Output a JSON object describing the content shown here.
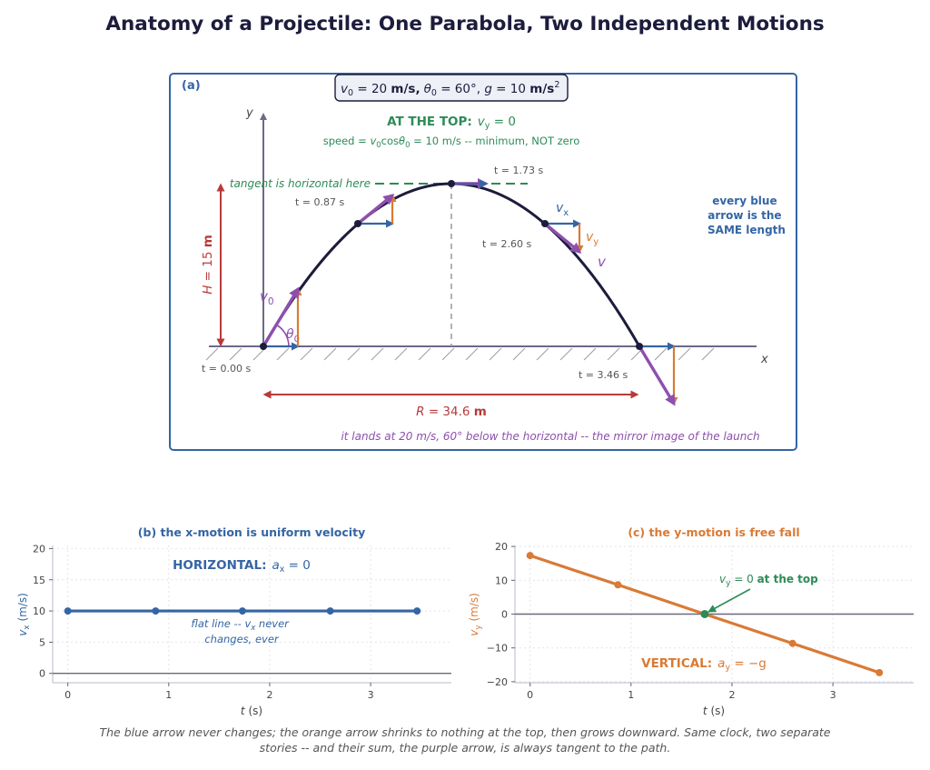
{
  "title": "Anatomy of a Projectile: One Parabola, Two Independent Motions",
  "panel_a": {
    "tag": "(a)",
    "params": "v0 = 20 m/s, θ0 = 60°, g = 10 m/s²",
    "params_v0": "v",
    "params_v0_sub": "0",
    "params_v0_rest": " = 20 ",
    "params_v0_unit": "m/s,",
    "params_theta": "θ",
    "params_theta_sub": "0",
    "params_theta_rest": " = 60°,  ",
    "params_g": "g",
    "params_g_rest": " = 10 ",
    "params_g_unit": "m/s",
    "params_g_exp": "2",
    "top_heading": "AT THE TOP:",
    "top_heading_vy": "v",
    "top_heading_vy_sub": "y",
    "top_heading_vy_rest": " = 0",
    "speed_prefix": "speed  = ",
    "speed_expr_v": "v",
    "speed_expr_sub": "0",
    "speed_expr_cos": "cos",
    "speed_expr_theta": "θ",
    "speed_expr_theta_sub": "0",
    "speed_suffix": " = 10 m/s -- minimum, NOT zero",
    "tangent_note": "tangent is horizontal here",
    "axis_y": "y",
    "axis_x": "x",
    "times": [
      "t = 0.00 s",
      "t = 0.87 s",
      "t = 1.73 s",
      "t = 2.60 s",
      "t = 3.46 s"
    ],
    "label_v0": "v",
    "label_v0_sub": "0",
    "label_theta": "θ",
    "label_theta_sub": "0",
    "label_vx": "v",
    "label_vx_sub": "x",
    "label_vy": "v",
    "label_vy_sub": "y",
    "label_v": "v",
    "height_label": "H = 15 m",
    "height_H": "H",
    "height_rest": " = 15 ",
    "height_unit": "m",
    "range_R": "R",
    "range_rest": " = 34.6 ",
    "range_unit": "m",
    "blue_note": [
      "every blue",
      "arrow is the",
      "SAME length"
    ],
    "landing_note": "it lands at 20 m/s, 60° below the horizontal -- the mirror image of the launch"
  },
  "panel_b": {
    "title": "(b)  the x-motion is uniform velocity",
    "heading": "HORIZONTAL:",
    "heading_a": "a",
    "heading_a_sub": "x",
    "heading_rest": " = 0",
    "note_line1_pre": "flat line -- ",
    "note_line1_v": "v",
    "note_line1_sub": "x",
    "note_line1_post": " never",
    "note_line2": "changes, ever",
    "ylabel_v": "v",
    "ylabel_sub": "x",
    "ylabel_unit": " (m/s)",
    "xlabel_t": "t",
    "xlabel_unit": " (s)"
  },
  "panel_c": {
    "title": "(c)  the y-motion is free fall",
    "annotation_v": "v",
    "annotation_sub": "y",
    "annotation_rest": " = 0 ",
    "annotation_bold": "at the top",
    "heading": "VERTICAL:",
    "heading_a": "a",
    "heading_a_sub": "y",
    "heading_rest": " = −g",
    "ylabel_v": "v",
    "ylabel_sub": "y",
    "ylabel_unit": " (m/s)",
    "xlabel_t": "t",
    "xlabel_unit": " (s)"
  },
  "caption": "The blue arrow never changes; the orange arrow shrinks to nothing at the top, then grows downward. Same clock, two separate stories -- and their sum, the purple arrow, is always tangent to the path.",
  "colors": {
    "blue": "#3465a4",
    "orange": "#d97a35",
    "purple": "#8e4fae",
    "green": "#2e8b57",
    "red": "#b83a3a",
    "navy": "#1c1c3c"
  },
  "chart_data": [
    {
      "type": "line",
      "title": "(b)  the x-motion is uniform velocity",
      "xlabel": "t (s)",
      "ylabel": "vx (m/s)",
      "x": [
        0,
        0.87,
        1.73,
        2.6,
        3.46
      ],
      "series": [
        {
          "values": [
            10,
            10,
            10,
            10,
            10
          ]
        }
      ],
      "xlim": [
        -0.15,
        3.8
      ],
      "ylim": [
        -1.5,
        20.5
      ],
      "xticks": [
        0,
        1,
        2,
        3
      ],
      "yticks": [
        0,
        5,
        10,
        15,
        20
      ],
      "grid": true
    },
    {
      "type": "line",
      "title": "(c)  the y-motion is free fall",
      "xlabel": "t (s)",
      "ylabel": "vy (m/s)",
      "x": [
        0,
        0.87,
        1.73,
        2.6,
        3.46
      ],
      "series": [
        {
          "values": [
            17.32,
            8.66,
            0,
            -8.66,
            -17.32
          ]
        }
      ],
      "highlight_point": {
        "x": 1.73,
        "y": 0
      },
      "xlim": [
        -0.15,
        3.8
      ],
      "ylim": [
        -20.3,
        20.3
      ],
      "xticks": [
        0,
        1,
        2,
        3
      ],
      "yticks": [
        -20,
        -10,
        0,
        10,
        20
      ],
      "grid": true
    }
  ]
}
